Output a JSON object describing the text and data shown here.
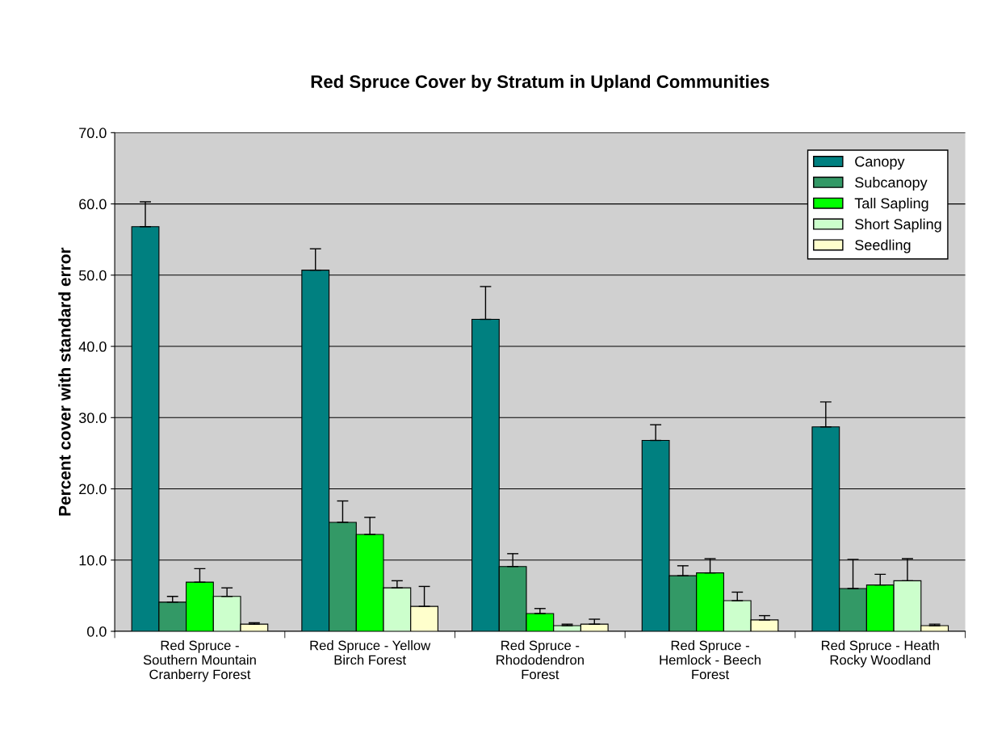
{
  "chart_data": {
    "type": "bar",
    "title": "Red Spruce Cover by Stratum in Upland Communities",
    "ylabel": "Percent cover with standard error",
    "categories": [
      "Red Spruce -\nSouthern Mountain\nCranberry Forest",
      "Red Spruce - Yellow\nBirch Forest",
      "Red Spruce -\nRhododendron\nForest",
      "Red Spruce -\nHemlock - Beech\nForest",
      "Red Spruce - Heath\nRocky Woodland"
    ],
    "series": [
      {
        "name": "Canopy",
        "color": "#008080",
        "values": [
          56.8,
          50.7,
          43.8,
          26.8,
          28.7
        ],
        "errors": [
          [
            56.8,
            60.3
          ],
          [
            50.7,
            53.7
          ],
          [
            43.8,
            48.4
          ],
          [
            26.8,
            29.0
          ],
          [
            28.7,
            32.2
          ]
        ]
      },
      {
        "name": "Subcanopy",
        "color": "#339966",
        "values": [
          4.1,
          15.3,
          9.1,
          7.8,
          6.0
        ],
        "errors": [
          [
            4.1,
            4.9
          ],
          [
            15.3,
            18.3
          ],
          [
            9.1,
            10.9
          ],
          [
            7.8,
            9.2
          ],
          [
            6.0,
            10.1
          ]
        ]
      },
      {
        "name": "Tall Sapling",
        "color": "#00ff00",
        "values": [
          6.9,
          13.6,
          2.5,
          8.2,
          6.5
        ],
        "errors": [
          [
            6.9,
            8.8
          ],
          [
            13.6,
            16.0
          ],
          [
            2.5,
            3.2
          ],
          [
            8.2,
            10.2
          ],
          [
            6.5,
            8.0
          ]
        ]
      },
      {
        "name": "Short Sapling",
        "color": "#ccffcc",
        "values": [
          4.9,
          6.1,
          0.8,
          4.3,
          7.1
        ],
        "errors": [
          [
            4.9,
            6.1
          ],
          [
            6.1,
            7.1
          ],
          [
            0.8,
            1.0
          ],
          [
            4.3,
            5.5
          ],
          [
            7.1,
            10.2
          ]
        ]
      },
      {
        "name": "Seedling",
        "color": "#ffffcc",
        "values": [
          1.0,
          3.5,
          1.0,
          1.6,
          0.8
        ],
        "errors": [
          [
            1.0,
            1.2
          ],
          [
            3.5,
            6.3
          ],
          [
            1.0,
            1.7
          ],
          [
            1.6,
            2.2
          ],
          [
            0.8,
            1.0
          ]
        ]
      }
    ],
    "ylim": [
      0,
      70
    ],
    "yticks": [
      {
        "value": 0,
        "label": "0.0"
      },
      {
        "value": 10,
        "label": "10.0"
      },
      {
        "value": 20,
        "label": "20.0"
      },
      {
        "value": 30,
        "label": "30.0"
      },
      {
        "value": 40,
        "label": "40.0"
      },
      {
        "value": 50,
        "label": "50.0"
      },
      {
        "value": 60,
        "label": "60.0"
      },
      {
        "value": 70,
        "label": "70.0"
      }
    ],
    "grid": "y",
    "legend": "top right"
  }
}
